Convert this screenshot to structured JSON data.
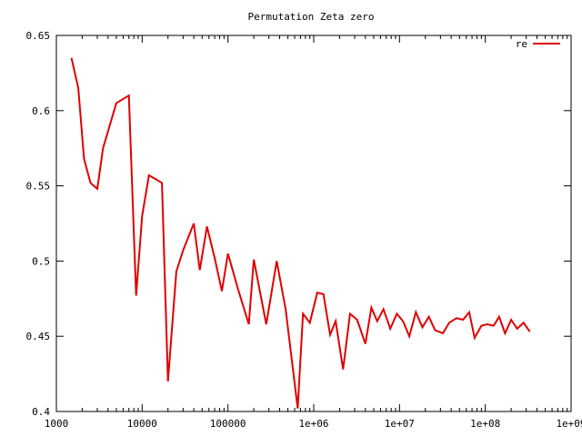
{
  "chart_data": {
    "type": "line",
    "title": "Permutation Zeta zero",
    "xlabel": "",
    "ylabel": "",
    "x_scale": "log",
    "xlim": [
      1000,
      1000000000
    ],
    "ylim": [
      0.4,
      0.65
    ],
    "grid": false,
    "legend_position": "top-right",
    "x_tick_labels": [
      "1000",
      "10000",
      "100000",
      "1e+06",
      "1e+07",
      "1e+08",
      "1e+09"
    ],
    "x_tick_values": [
      1000,
      10000,
      100000,
      1000000,
      10000000,
      100000000,
      1000000000
    ],
    "y_tick_labels": [
      "0.4",
      "0.45",
      "0.5",
      "0.55",
      "0.6",
      "0.65"
    ],
    "y_tick_values": [
      0.4,
      0.45,
      0.5,
      0.55,
      0.6,
      0.65
    ],
    "series": [
      {
        "name": "re",
        "color": "#e00000",
        "x": [
          1500,
          1800,
          2100,
          2500,
          3000,
          3500,
          5000,
          7000,
          8500,
          10000,
          12000,
          17000,
          20000,
          25000,
          30000,
          40000,
          47000,
          57000,
          70000,
          85000,
          100000,
          130000,
          175000,
          200000,
          230000,
          280000,
          370000,
          470000,
          650000,
          750000,
          900000,
          1100000,
          1300000,
          1550000,
          1800000,
          2200000,
          2650000,
          3200000,
          4000000,
          4700000,
          5500000,
          6500000,
          7800000,
          9300000,
          11000000,
          13000000,
          15500000,
          18500000,
          22000000,
          26000000,
          32000000,
          38000000,
          46000000,
          55000000,
          65000000,
          75000000,
          90000000,
          105000000,
          125000000,
          145000000,
          170000000,
          200000000,
          235000000,
          280000000,
          330000000
        ],
        "values": [
          0.635,
          0.615,
          0.568,
          0.552,
          0.548,
          0.575,
          0.605,
          0.61,
          0.477,
          0.53,
          0.557,
          0.552,
          0.42,
          0.493,
          0.507,
          0.525,
          0.494,
          0.523,
          0.502,
          0.48,
          0.505,
          0.482,
          0.458,
          0.501,
          0.483,
          0.458,
          0.5,
          0.468,
          0.402,
          0.465,
          0.459,
          0.479,
          0.478,
          0.451,
          0.46,
          0.428,
          0.465,
          0.461,
          0.445,
          0.469,
          0.46,
          0.468,
          0.455,
          0.465,
          0.46,
          0.45,
          0.466,
          0.456,
          0.463,
          0.454,
          0.452,
          0.459,
          0.462,
          0.461,
          0.466,
          0.449,
          0.457,
          0.458,
          0.457,
          0.463,
          0.452,
          0.461,
          0.455,
          0.459,
          0.453
        ]
      }
    ]
  }
}
